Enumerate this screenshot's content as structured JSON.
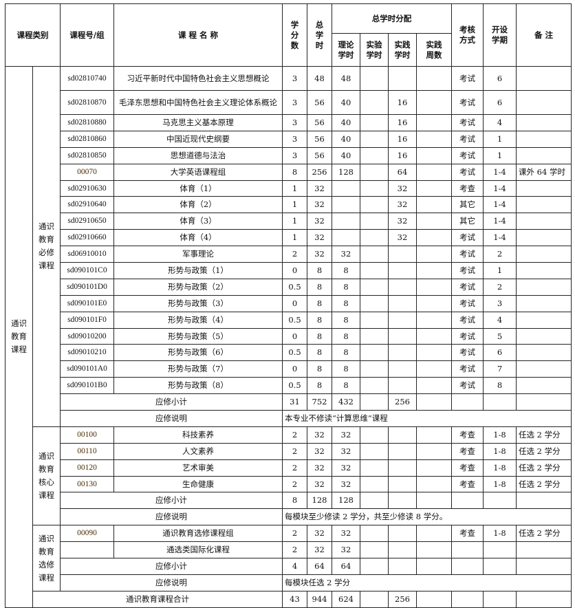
{
  "header": {
    "category": "课程类别",
    "code": "课程号/组",
    "name": "课 程 名 称",
    "credits": "学\n分\n数",
    "total_hours": "总\n学\n时",
    "distribution": "总学时分配",
    "theory": "理论\n学时",
    "experiment": "实验\n学时",
    "practice": "实践\n学时",
    "practice_weeks": "实践\n周数",
    "exam": "考核\n方式",
    "term": "开设\n学期",
    "note": "备 注"
  },
  "category": "通识\n教育\n课程",
  "sections": [
    {
      "label": "通识\n教育\n必修\n课程",
      "rows": [
        [
          "sd02810740",
          "习近平新时代中国特色社会主义思想概论",
          "3",
          "48",
          "48",
          "",
          "",
          "",
          "考试",
          "6",
          ""
        ],
        [
          "sd02810870",
          "毛泽东思想和中国特色社会主义理论体系概论",
          "3",
          "56",
          "40",
          "",
          "16",
          "",
          "考试",
          "6",
          ""
        ],
        [
          "sd02810880",
          "马克思主义基本原理",
          "3",
          "56",
          "40",
          "",
          "16",
          "",
          "考试",
          "4",
          ""
        ],
        [
          "sd02810860",
          "中国近现代史纲要",
          "3",
          "56",
          "40",
          "",
          "16",
          "",
          "考试",
          "1",
          ""
        ],
        [
          "sd02810850",
          "思想道德与法治",
          "3",
          "56",
          "40",
          "",
          "16",
          "",
          "考试",
          "1",
          ""
        ],
        [
          "00070",
          "大学英语课程组",
          "8",
          "256",
          "128",
          "",
          "64",
          "",
          "考试",
          "1-4",
          "课外 64 学时"
        ],
        [
          "sd02910630",
          "体育（1）",
          "1",
          "32",
          "",
          "",
          "32",
          "",
          "考查",
          "1-4",
          ""
        ],
        [
          "sd02910640",
          "体育（2）",
          "1",
          "32",
          "",
          "",
          "32",
          "",
          "其它",
          "1-4",
          ""
        ],
        [
          "sd02910650",
          "体育（3）",
          "1",
          "32",
          "",
          "",
          "32",
          "",
          "其它",
          "1-4",
          ""
        ],
        [
          "sd02910660",
          "体育（4）",
          "1",
          "32",
          "",
          "",
          "32",
          "",
          "考试",
          "1-4",
          ""
        ],
        [
          "sd06910010",
          "军事理论",
          "2",
          "32",
          "32",
          "",
          "",
          "",
          "考试",
          "2",
          ""
        ],
        [
          "sd090101C0",
          "形势与政策（1）",
          "0",
          "8",
          "8",
          "",
          "",
          "",
          "考试",
          "1",
          ""
        ],
        [
          "sd090101D0",
          "形势与政策（2）",
          "0.5",
          "8",
          "8",
          "",
          "",
          "",
          "考试",
          "2",
          ""
        ],
        [
          "sd090101E0",
          "形势与政策（3）",
          "0",
          "8",
          "8",
          "",
          "",
          "",
          "考试",
          "3",
          ""
        ],
        [
          "sd090101F0",
          "形势与政策（4）",
          "0.5",
          "8",
          "8",
          "",
          "",
          "",
          "考试",
          "4",
          ""
        ],
        [
          "sd09010200",
          "形势与政策（5）",
          "0",
          "8",
          "8",
          "",
          "",
          "",
          "考试",
          "5",
          ""
        ],
        [
          "sd09010210",
          "形势与政策（6）",
          "0.5",
          "8",
          "8",
          "",
          "",
          "",
          "考试",
          "6",
          ""
        ],
        [
          "sd090101A0",
          "形势与政策（7）",
          "0",
          "8",
          "8",
          "",
          "",
          "",
          "考试",
          "7",
          ""
        ],
        [
          "sd090101B0",
          "形势与政策（8）",
          "0.5",
          "8",
          "8",
          "",
          "",
          "",
          "考试",
          "8",
          ""
        ]
      ],
      "subtotal_label": "应修小计",
      "subtotal": [
        "31",
        "752",
        "432",
        "",
        "256",
        "",
        "",
        "",
        ""
      ],
      "remark_label": "应修说明",
      "remark": "本专业不修读“计算思维”课程"
    },
    {
      "label": "通识\n教育\n核心\n课程",
      "rows": [
        [
          "00100",
          "科技素养",
          "2",
          "32",
          "32",
          "",
          "",
          "",
          "考查",
          "1-8",
          "任选 2 学分"
        ],
        [
          "00110",
          "人文素养",
          "2",
          "32",
          "32",
          "",
          "",
          "",
          "考查",
          "1-8",
          "任选 2 学分"
        ],
        [
          "00120",
          "艺术审美",
          "2",
          "32",
          "32",
          "",
          "",
          "",
          "考查",
          "1-8",
          "任选 2 学分"
        ],
        [
          "00130",
          "生命健康",
          "2",
          "32",
          "32",
          "",
          "",
          "",
          "考查",
          "1-8",
          "任选 2 学分"
        ]
      ],
      "subtotal_label": "应修小计",
      "subtotal": [
        "8",
        "128",
        "128",
        "",
        "",
        "",
        "",
        "",
        ""
      ],
      "remark_label": "应修说明",
      "remark": "每模块至少修读 2 学分，共至少修读 8 学分。"
    },
    {
      "label": "通识\n教育\n选修\n课程",
      "rows": [
        [
          "00090",
          "通识教育选修课程组",
          "2",
          "32",
          "32",
          "",
          "",
          "",
          "考查",
          "1-8",
          "任选 2 学分"
        ],
        [
          "",
          "通选类国际化课程",
          "2",
          "32",
          "32",
          "",
          "",
          "",
          "",
          "",
          ""
        ]
      ],
      "subtotal_label": "应修小计",
      "subtotal": [
        "4",
        "64",
        "64",
        "",
        "",
        "",
        "",
        "",
        ""
      ],
      "remark_label": "应修说明",
      "remark": "每模块任选 2 学分"
    }
  ],
  "total_label": "通识教育课程合计",
  "total": [
    "43",
    "944",
    "624",
    "",
    "256",
    "",
    "",
    "",
    ""
  ]
}
